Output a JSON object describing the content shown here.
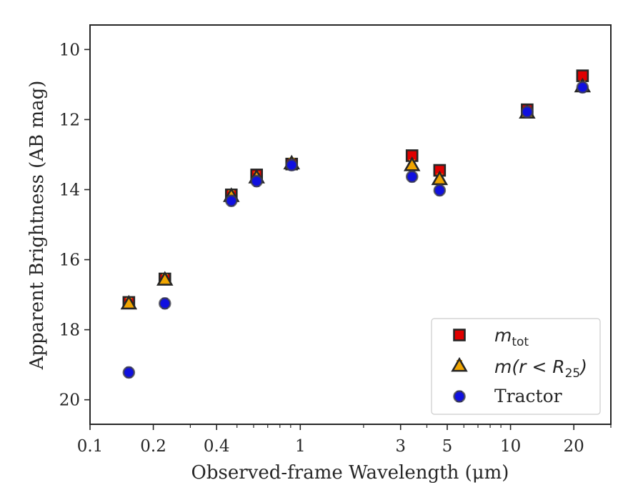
{
  "chart_data": {
    "type": "scatter",
    "xlabel": "Observed-frame Wavelength (μm)",
    "ylabel": "Apparent Brightness (AB mag)",
    "x_scale": "log",
    "xlim": [
      0.1,
      30
    ],
    "ylim": [
      20.7,
      9.3
    ],
    "y_inverted": true,
    "x_ticks": [
      {
        "value": 0.1,
        "label": "0.1"
      },
      {
        "value": 0.2,
        "label": "0.2"
      },
      {
        "value": 0.4,
        "label": "0.4"
      },
      {
        "value": 1,
        "label": "1"
      },
      {
        "value": 3,
        "label": "3"
      },
      {
        "value": 5,
        "label": "5"
      },
      {
        "value": 10,
        "label": "10"
      },
      {
        "value": 20,
        "label": "20"
      }
    ],
    "y_ticks": [
      {
        "value": 10,
        "label": "10"
      },
      {
        "value": 12,
        "label": "12"
      },
      {
        "value": 14,
        "label": "14"
      },
      {
        "value": 16,
        "label": "16"
      },
      {
        "value": 18,
        "label": "18"
      },
      {
        "value": 20,
        "label": "20"
      }
    ],
    "grid": false,
    "legend_position": "bottom-right",
    "series": [
      {
        "name": "m_tot",
        "marker": "square",
        "color": "#e00000",
        "edge": "#262626",
        "points": [
          {
            "x": 0.153,
            "y": 17.22
          },
          {
            "x": 0.227,
            "y": 16.55
          },
          {
            "x": 0.47,
            "y": 14.15
          },
          {
            "x": 0.62,
            "y": 13.58
          },
          {
            "x": 0.91,
            "y": 13.27
          },
          {
            "x": 3.4,
            "y": 13.03
          },
          {
            "x": 4.6,
            "y": 13.45
          },
          {
            "x": 12.0,
            "y": 11.72
          },
          {
            "x": 22.0,
            "y": 10.75
          }
        ]
      },
      {
        "name": "m(r<R25)",
        "marker": "triangle",
        "color": "#f0a500",
        "edge": "#262626",
        "points": [
          {
            "x": 0.153,
            "y": 17.25
          },
          {
            "x": 0.227,
            "y": 16.57
          },
          {
            "x": 0.47,
            "y": 14.18
          },
          {
            "x": 0.62,
            "y": 13.65
          },
          {
            "x": 0.91,
            "y": 13.25
          },
          {
            "x": 3.4,
            "y": 13.3
          },
          {
            "x": 4.6,
            "y": 13.7
          },
          {
            "x": 12.0,
            "y": 11.8
          },
          {
            "x": 22.0,
            "y": 11.05
          }
        ]
      },
      {
        "name": "Tractor",
        "marker": "circle",
        "color": "#1010e0",
        "edge": "#404040",
        "points": [
          {
            "x": 0.153,
            "y": 19.22
          },
          {
            "x": 0.227,
            "y": 17.25
          },
          {
            "x": 0.47,
            "y": 14.32
          },
          {
            "x": 0.62,
            "y": 13.76
          },
          {
            "x": 0.91,
            "y": 13.3
          },
          {
            "x": 3.4,
            "y": 13.63
          },
          {
            "x": 4.6,
            "y": 14.02
          },
          {
            "x": 12.0,
            "y": 11.78
          },
          {
            "x": 22.0,
            "y": 11.08
          }
        ]
      }
    ]
  },
  "legend": {
    "items": [
      {
        "label": "tot",
        "prefix": "m",
        "marker": "square"
      },
      {
        "label": "m(r < R",
        "sub": "25",
        "suffix": ")",
        "marker": "triangle"
      },
      {
        "label": "Tractor",
        "marker": "circle"
      }
    ]
  }
}
